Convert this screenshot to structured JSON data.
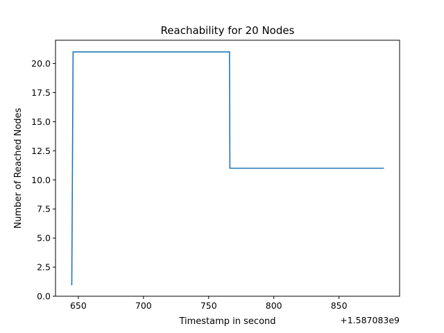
{
  "chart_data": {
    "type": "line",
    "title": "Reachability for 20 Nodes",
    "xlabel": "Timestamp in second",
    "ylabel": "Number of Reached Nodes",
    "x_offset_text": "+1.587083e9",
    "xlim": [
      632.5,
      896.5
    ],
    "ylim": [
      0,
      22
    ],
    "x_ticks": [
      650,
      700,
      750,
      800,
      850
    ],
    "x_tick_labels": [
      "650",
      "700",
      "750",
      "800",
      "850"
    ],
    "y_ticks": [
      0,
      2.5,
      5,
      7.5,
      10,
      12.5,
      15,
      17.5,
      20
    ],
    "y_tick_labels": [
      "0.0",
      "2.5",
      "5.0",
      "7.5",
      "10.0",
      "12.5",
      "15.0",
      "17.5",
      "20.0"
    ],
    "grid": false,
    "legend": "none",
    "series": [
      {
        "color": "#1f77b4",
        "x": [
          644.5,
          645,
          646,
          766,
          766.3,
          884.5
        ],
        "y": [
          1,
          1,
          21,
          21,
          11,
          11
        ]
      }
    ]
  }
}
